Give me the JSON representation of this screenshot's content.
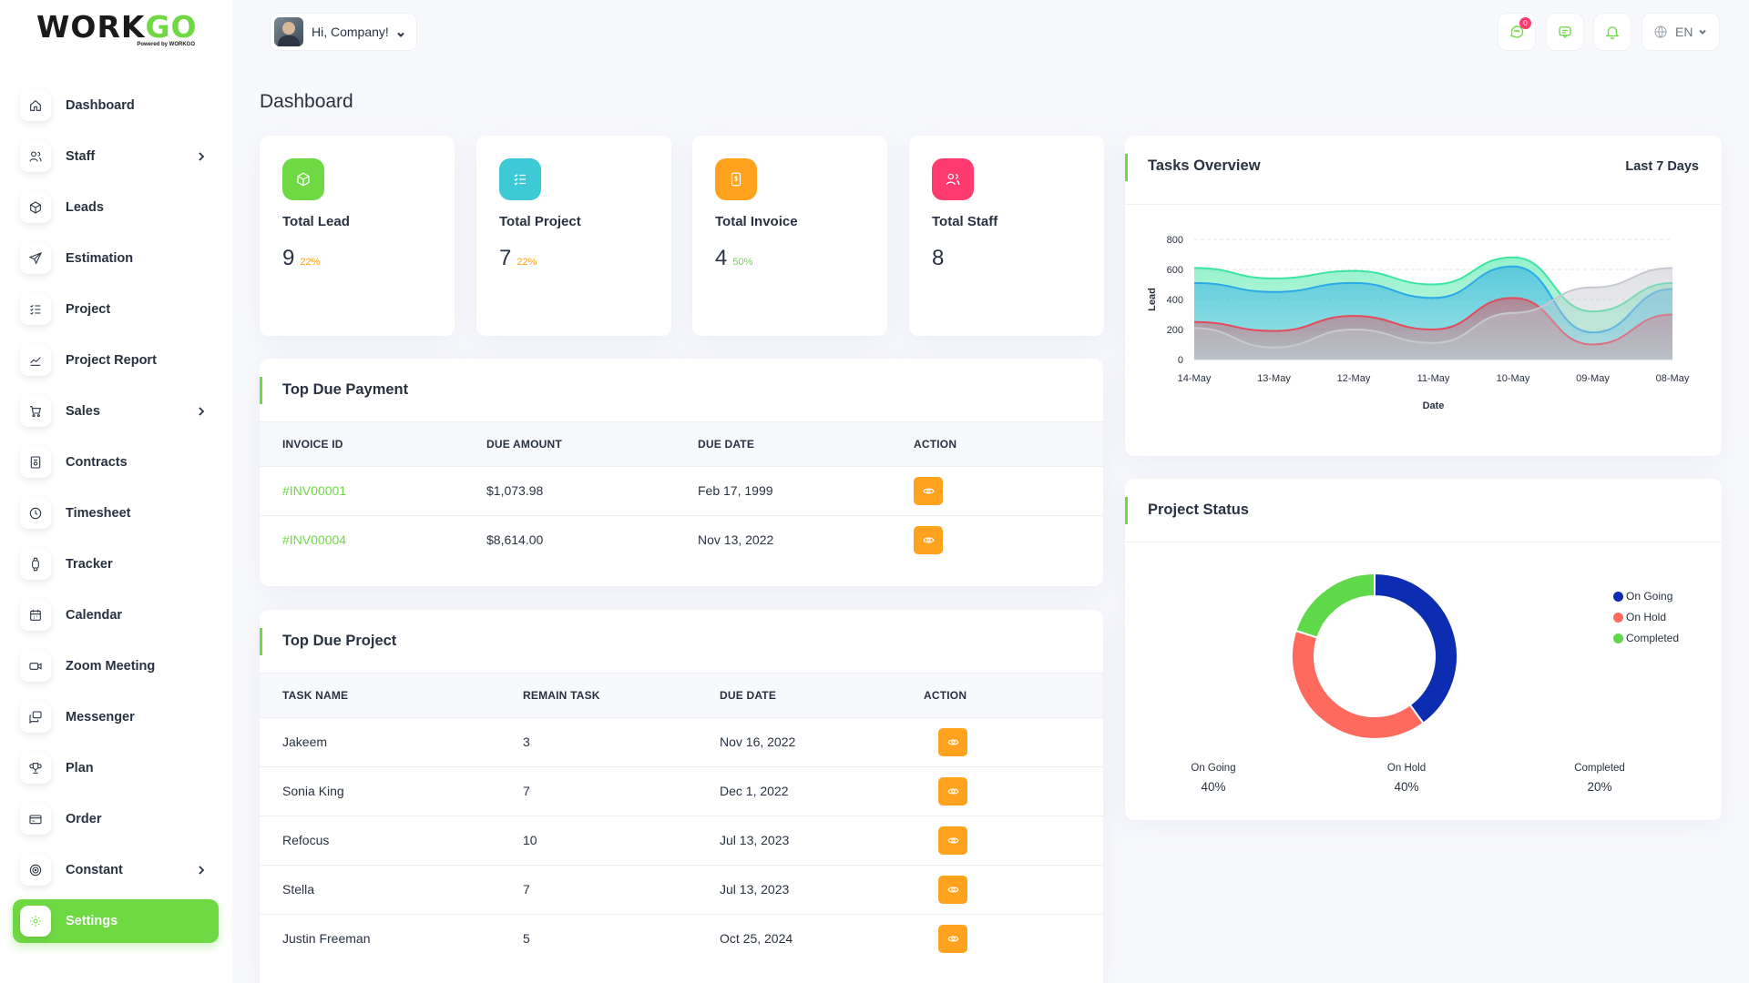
{
  "brand": {
    "name_main": "WORK",
    "name_accent": "GO",
    "tagline": "Powered by WORKGO"
  },
  "header": {
    "greeting": "Hi, Company!",
    "message_badge": "0",
    "language": "EN"
  },
  "page_title": "Dashboard",
  "sidebar": {
    "items": [
      {
        "label": "Dashboard",
        "icon": "home-icon",
        "has_children": false
      },
      {
        "label": "Staff",
        "icon": "users-icon",
        "has_children": true
      },
      {
        "label": "Leads",
        "icon": "cube-icon",
        "has_children": false
      },
      {
        "label": "Estimation",
        "icon": "send-icon",
        "has_children": false
      },
      {
        "label": "Project",
        "icon": "list-check-icon",
        "has_children": false
      },
      {
        "label": "Project Report",
        "icon": "chart-line-icon",
        "has_children": false
      },
      {
        "label": "Sales",
        "icon": "cart-icon",
        "has_children": true
      },
      {
        "label": "Contracts",
        "icon": "contract-icon",
        "has_children": false
      },
      {
        "label": "Timesheet",
        "icon": "clock-icon",
        "has_children": false
      },
      {
        "label": "Tracker",
        "icon": "watch-icon",
        "has_children": false
      },
      {
        "label": "Calendar",
        "icon": "calendar-icon",
        "has_children": false
      },
      {
        "label": "Zoom Meeting",
        "icon": "video-icon",
        "has_children": false
      },
      {
        "label": "Messenger",
        "icon": "message-icon",
        "has_children": false
      },
      {
        "label": "Plan",
        "icon": "trophy-icon",
        "has_children": false
      },
      {
        "label": "Order",
        "icon": "credit-card-icon",
        "has_children": false
      },
      {
        "label": "Constant",
        "icon": "target-icon",
        "has_children": true
      },
      {
        "label": "Settings",
        "icon": "gear-icon",
        "has_children": false,
        "active": true
      }
    ]
  },
  "stats": [
    {
      "label": "Total Lead",
      "value": "9",
      "pct": "22%",
      "color": "#6fd943",
      "pct_color": "#ffa21d",
      "icon": "cube-icon"
    },
    {
      "label": "Total Project",
      "value": "7",
      "pct": "22%",
      "color": "#3ec9d6",
      "pct_color": "#ffa21d",
      "icon": "list-check-icon"
    },
    {
      "label": "Total Invoice",
      "value": "4",
      "pct": "50%",
      "color": "#ffa21d",
      "pct_color": "#6fd943",
      "icon": "invoice-icon"
    },
    {
      "label": "Total Staff",
      "value": "8",
      "pct": "",
      "color": "#ff3a6e",
      "pct_color": "#ffa21d",
      "icon": "users-icon"
    }
  ],
  "due_payment": {
    "title": "Top Due Payment",
    "columns": [
      "INVOICE ID",
      "DUE AMOUNT",
      "DUE DATE",
      "ACTION"
    ],
    "rows": [
      {
        "id": "#INV00001",
        "amount": "$1,073.98",
        "date": "Feb 17, 1999"
      },
      {
        "id": "#INV00004",
        "amount": "$8,614.00",
        "date": "Nov 13, 2022"
      }
    ]
  },
  "due_project": {
    "title": "Top Due Project",
    "columns": [
      "TASK NAME",
      "REMAIN TASK",
      "DUE DATE",
      "ACTION"
    ],
    "rows": [
      {
        "name": "Jakeem",
        "remain": "3",
        "date": "Nov 16, 2022"
      },
      {
        "name": "Sonia King",
        "remain": "7",
        "date": "Dec 1, 2022"
      },
      {
        "name": "Refocus",
        "remain": "10",
        "date": "Jul 13, 2023"
      },
      {
        "name": "Stella",
        "remain": "7",
        "date": "Jul 13, 2023"
      },
      {
        "name": "Justin Freeman",
        "remain": "5",
        "date": "Oct 25, 2024"
      }
    ]
  },
  "tasks_overview": {
    "title": "Tasks Overview",
    "range": "Last 7 Days"
  },
  "project_status": {
    "title": "Project Status",
    "summary": [
      {
        "label": "On Going",
        "value": "40%"
      },
      {
        "label": "On Hold",
        "value": "40%"
      },
      {
        "label": "Completed",
        "value": "20%"
      }
    ]
  },
  "chart_data": [
    {
      "type": "area",
      "title": "Tasks Overview",
      "xlabel": "Date",
      "ylabel": "Lead",
      "categories": [
        "14-May",
        "13-May",
        "12-May",
        "11-May",
        "10-May",
        "09-May",
        "08-May"
      ],
      "ylim": [
        0,
        800
      ],
      "yticks": [
        0,
        200,
        400,
        600,
        800
      ],
      "grid": true,
      "series": [
        {
          "values": [
            610,
            540,
            590,
            500,
            680,
            320,
            510
          ],
          "color": "#3ce6a1"
        },
        {
          "values": [
            510,
            450,
            510,
            410,
            620,
            180,
            470
          ],
          "color": "#2ba9e9"
        },
        {
          "values": [
            250,
            190,
            290,
            200,
            410,
            100,
            300
          ],
          "color": "#e44a5b"
        },
        {
          "values": [
            210,
            80,
            200,
            110,
            310,
            480,
            610
          ],
          "color": "#c7c9d1"
        }
      ]
    },
    {
      "type": "pie",
      "title": "Project Status",
      "categories": [
        "On Going",
        "On Hold",
        "Completed"
      ],
      "values": [
        40,
        40,
        20
      ],
      "colors": [
        "#0c2db1",
        "#ff6a5f",
        "#5fd84a"
      ],
      "legend": "right"
    }
  ]
}
